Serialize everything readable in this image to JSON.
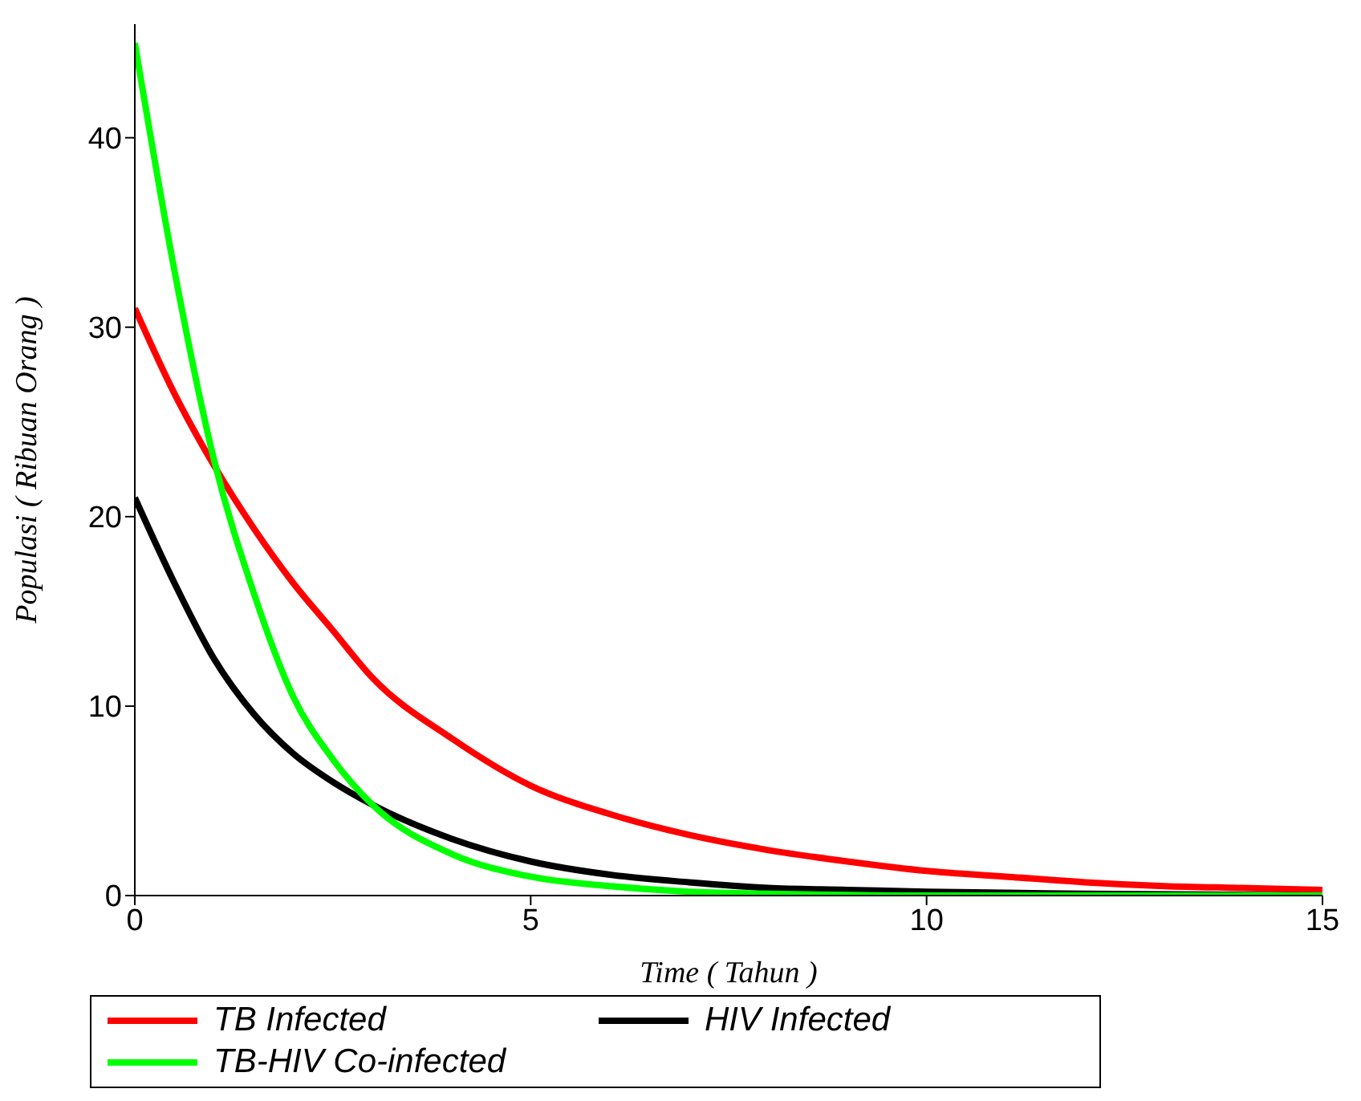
{
  "chart_data": {
    "type": "line",
    "xlabel": "Time ( Tahun )",
    "ylabel": "Populasi ( Ribuan Orang )",
    "xlim": [
      0,
      15
    ],
    "xticks": [
      0,
      5,
      10,
      15
    ],
    "ylim": [
      0,
      46
    ],
    "yticks": [
      0,
      10,
      20,
      30,
      40
    ],
    "grid": false,
    "legend": "bottom",
    "marker": "none",
    "line_style": "solid",
    "series": [
      {
        "name": "TB Infected",
        "color": "#ff0000",
        "x": [
          0,
          0.5,
          1,
          1.5,
          2,
          2.5,
          3,
          4,
          5,
          6,
          7,
          8,
          9,
          10,
          11,
          12,
          13,
          14,
          15
        ],
        "values": [
          31,
          26.5,
          22.7,
          19.4,
          16.5,
          14,
          11.5,
          8.3,
          5.8,
          4.3,
          3.2,
          2.4,
          1.8,
          1.3,
          1,
          0.7,
          0.5,
          0.4,
          0.3
        ]
      },
      {
        "name": "HIV Infected",
        "color": "#000000",
        "x": [
          0,
          0.5,
          1,
          1.5,
          2,
          2.5,
          3,
          4,
          5,
          6,
          7,
          8,
          9,
          10,
          12,
          15
        ],
        "values": [
          21,
          16.5,
          12.5,
          9.6,
          7.5,
          6,
          4.8,
          3,
          1.8,
          1.1,
          0.7,
          0.4,
          0.3,
          0.2,
          0.1,
          0
        ]
      },
      {
        "name": "TB-HIV Co-infected",
        "color": "#00ff00",
        "x": [
          0,
          0.5,
          1,
          1.5,
          2,
          2.5,
          3,
          4,
          5,
          6,
          7,
          8,
          10,
          15
        ],
        "values": [
          45,
          33,
          23,
          16,
          10.5,
          7.2,
          4.8,
          2.2,
          1,
          0.5,
          0.2,
          0.1,
          0,
          0
        ]
      }
    ]
  }
}
